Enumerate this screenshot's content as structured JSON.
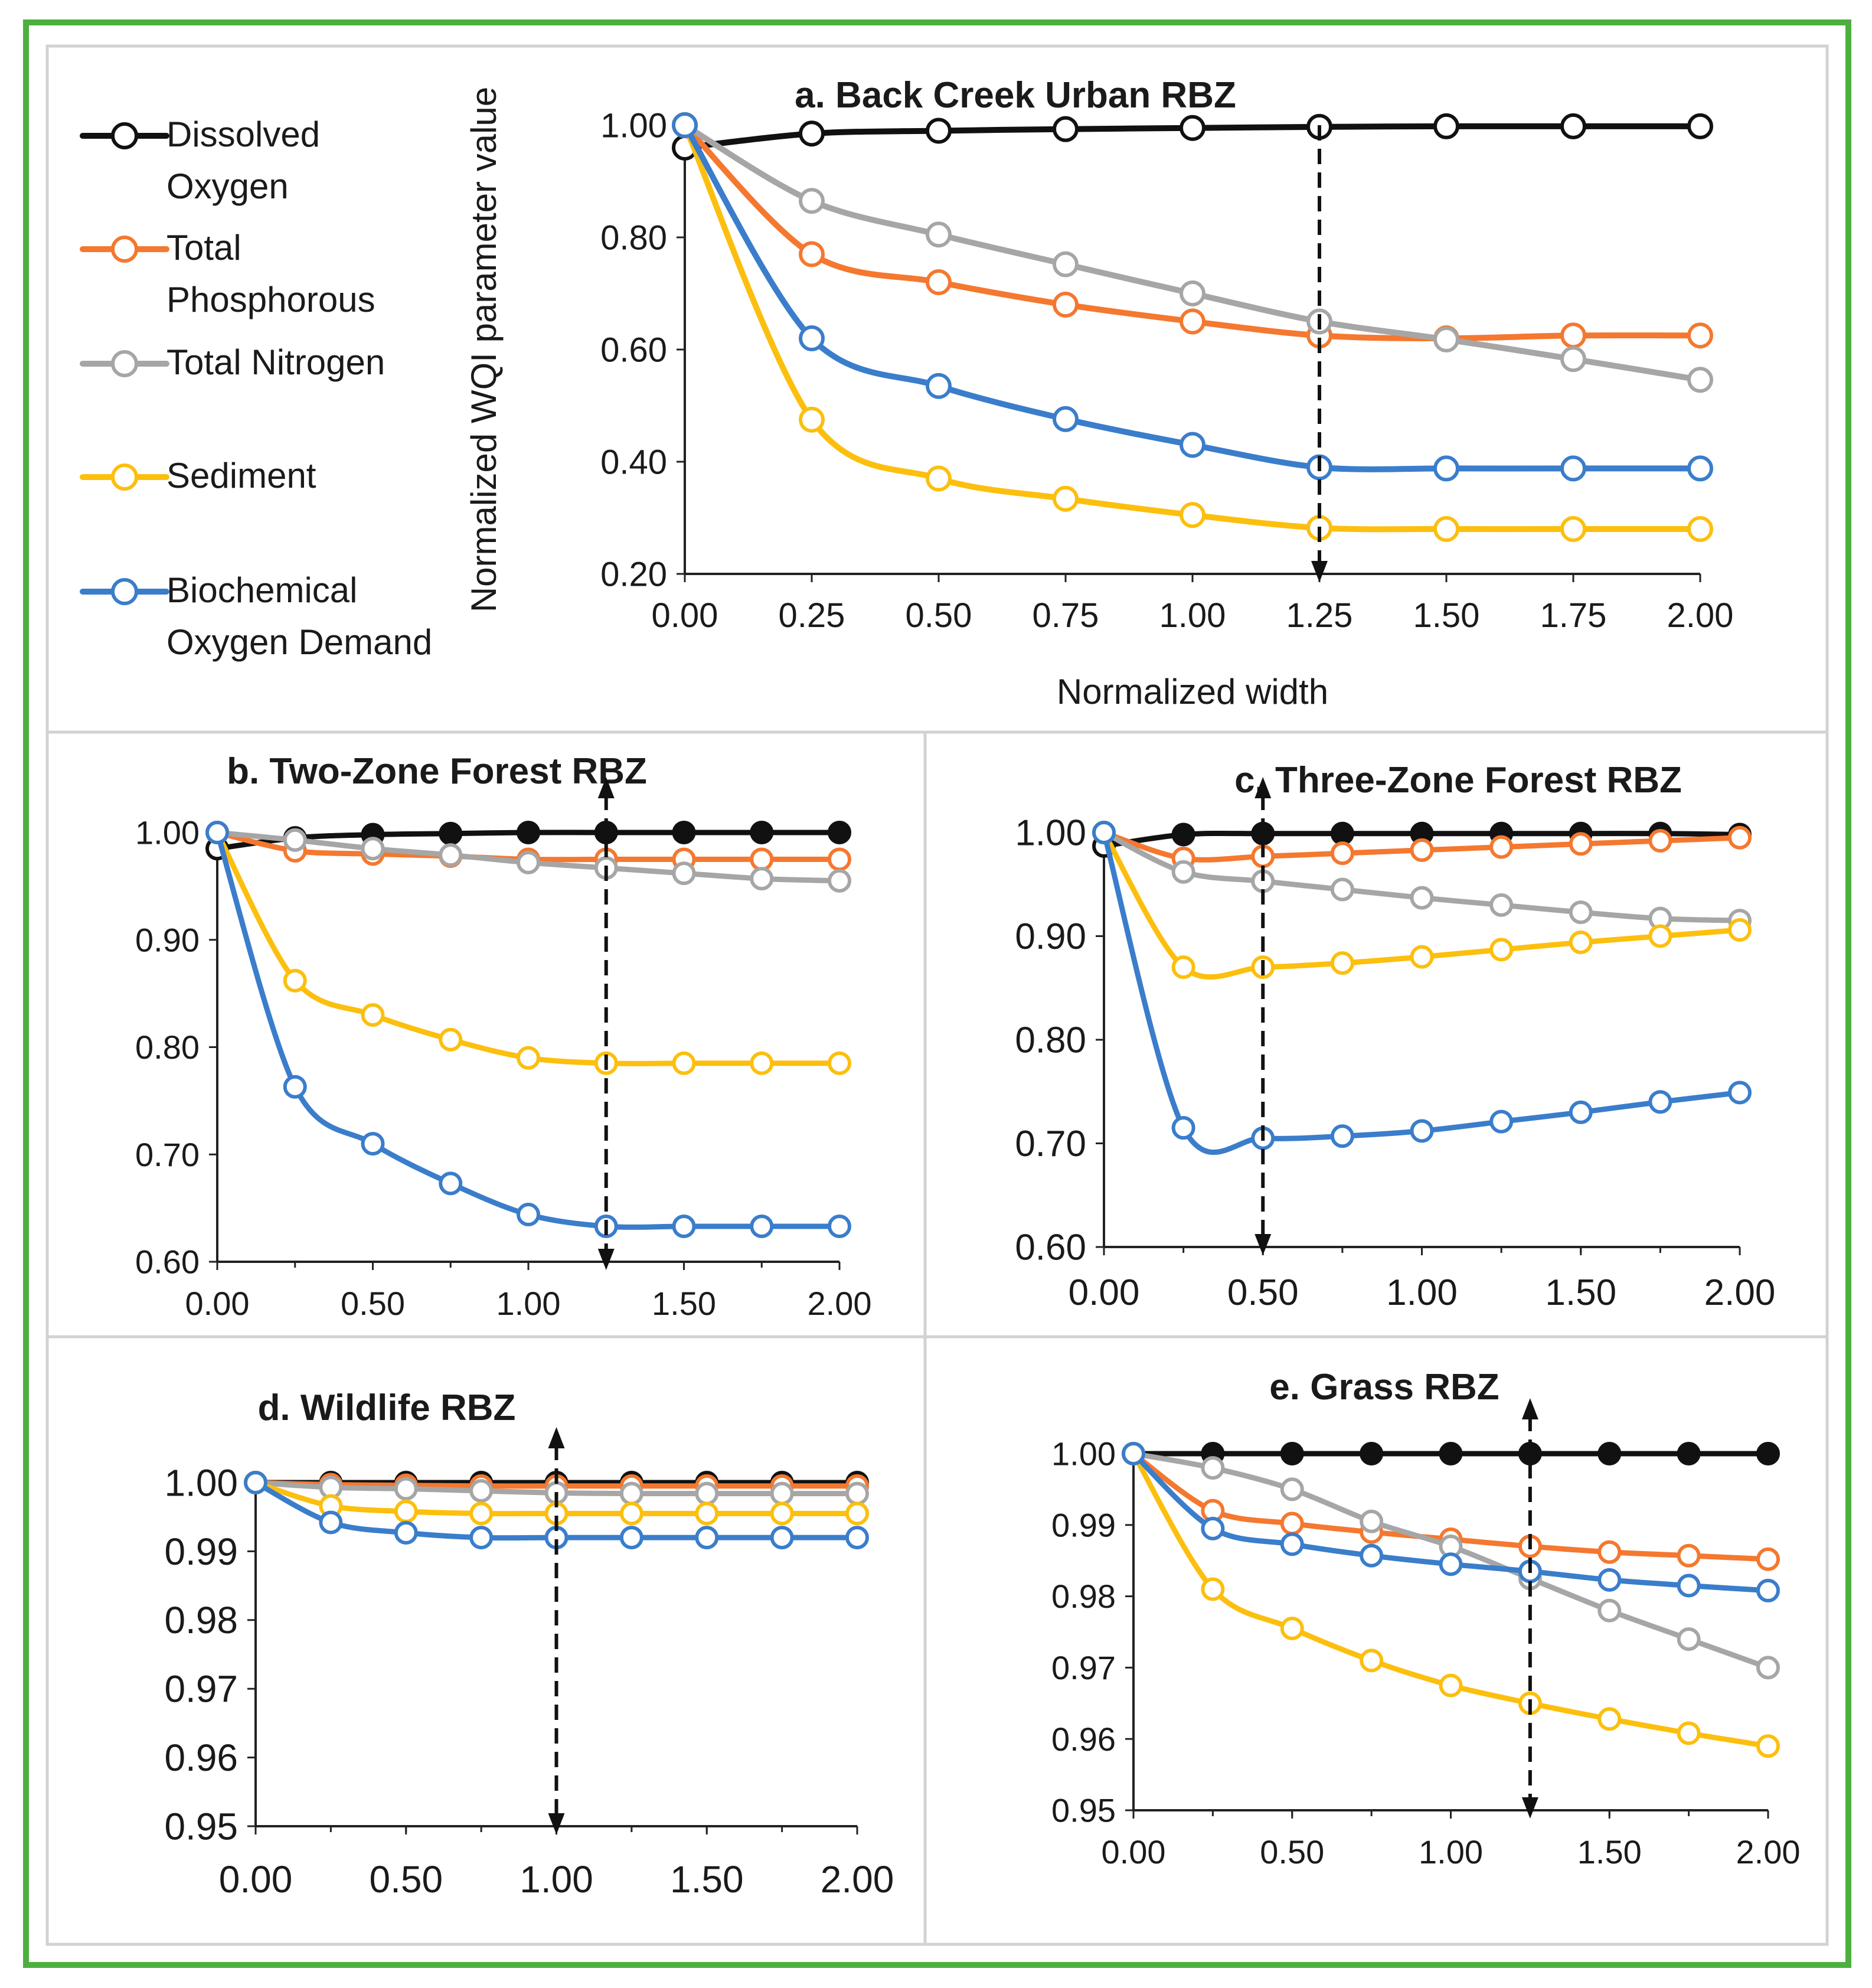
{
  "colors": {
    "Dissolved Oxygen": "#111111",
    "Total Phosphorous": "#f4782f",
    "Total Nitrogen": "#a6a6a6",
    "Sediment": "#fcbf0e",
    "Biochemical Oxygen Demand": "#3a7dcb",
    "frame": "#4caf3e",
    "divider": "#d2d2d2"
  },
  "legend": [
    {
      "key": "Dissolved Oxygen",
      "lines": [
        "Dissolved",
        "Oxygen"
      ]
    },
    {
      "key": "Total Phosphorous",
      "lines": [
        "Total",
        "Phosphorous"
      ]
    },
    {
      "key": "Total Nitrogen",
      "lines": [
        "Total Nitrogen"
      ]
    },
    {
      "key": "Sediment",
      "lines": [
        "Sediment"
      ]
    },
    {
      "key": "Biochemical Oxygen Demand",
      "lines": [
        "Biochemical",
        "Oxygen Demand"
      ]
    }
  ],
  "chart_data": [
    {
      "id": "a",
      "type": "line",
      "title": "a. Back Creek Urban RBZ",
      "xlabel": "Normalized width",
      "ylabel": "Normalized WQI parameter value",
      "xlim": [
        0,
        2
      ],
      "ylim": [
        0.2,
        1.0
      ],
      "xticks": [
        "0.00",
        "0.25",
        "0.50",
        "0.75",
        "1.00",
        "1.25",
        "1.50",
        "1.75",
        "2.00"
      ],
      "yticks": [
        "0.20",
        "0.40",
        "0.60",
        "0.80",
        "1.00"
      ],
      "marker_line_x": 1.25,
      "marker_arrow": "down",
      "x": [
        0,
        0.25,
        0.5,
        0.75,
        1.0,
        1.25,
        1.5,
        1.75,
        2.0
      ],
      "series": [
        {
          "name": "Dissolved Oxygen",
          "filled": false,
          "values": [
            0.96,
            0.985,
            0.99,
            0.993,
            0.995,
            0.997,
            0.998,
            0.998,
            0.998
          ]
        },
        {
          "name": "Total Phosphorous",
          "filled": false,
          "values": [
            1.0,
            0.77,
            0.72,
            0.68,
            0.65,
            0.625,
            0.62,
            0.625,
            0.625
          ]
        },
        {
          "name": "Total Nitrogen",
          "filled": false,
          "values": [
            1.0,
            0.865,
            0.805,
            0.752,
            0.7,
            0.65,
            0.618,
            0.583,
            0.546
          ]
        },
        {
          "name": "Sediment",
          "filled": false,
          "values": [
            1.0,
            0.475,
            0.37,
            0.334,
            0.305,
            0.282,
            0.28,
            0.28,
            0.28
          ]
        },
        {
          "name": "Biochemical Oxygen Demand",
          "filled": false,
          "values": [
            1.0,
            0.62,
            0.535,
            0.476,
            0.43,
            0.39,
            0.388,
            0.388,
            0.388
          ]
        }
      ]
    },
    {
      "id": "b",
      "type": "line",
      "title": "b. Two-Zone Forest RBZ",
      "xlim": [
        0,
        2
      ],
      "ylim": [
        0.6,
        1.0
      ],
      "xticks": [
        "0.00",
        "0.50",
        "1.00",
        "1.50",
        "2.00"
      ],
      "yticks": [
        "0.60",
        "0.70",
        "0.80",
        "0.90",
        "1.00"
      ],
      "marker_line_x": 1.25,
      "marker_arrow": "both",
      "x": [
        0,
        0.25,
        0.5,
        0.75,
        1.0,
        1.25,
        1.5,
        1.75,
        2.0
      ],
      "series": [
        {
          "name": "Dissolved Oxygen",
          "filled": true,
          "values": [
            0.985,
            0.995,
            0.998,
            0.999,
            1.0,
            1.0,
            1.0,
            1.0,
            1.0
          ]
        },
        {
          "name": "Total Phosphorous",
          "filled": false,
          "values": [
            1.0,
            0.983,
            0.98,
            0.978,
            0.975,
            0.975,
            0.975,
            0.975,
            0.975
          ]
        },
        {
          "name": "Total Nitrogen",
          "filled": false,
          "values": [
            1.0,
            0.993,
            0.985,
            0.979,
            0.972,
            0.967,
            0.962,
            0.957,
            0.955
          ]
        },
        {
          "name": "Sediment",
          "filled": false,
          "values": [
            1.0,
            0.862,
            0.83,
            0.807,
            0.79,
            0.785,
            0.785,
            0.785,
            0.785
          ]
        },
        {
          "name": "Biochemical Oxygen Demand",
          "filled": false,
          "values": [
            1.0,
            0.763,
            0.71,
            0.673,
            0.644,
            0.633,
            0.633,
            0.633,
            0.633
          ]
        }
      ]
    },
    {
      "id": "c",
      "type": "line",
      "title": "c. Three-Zone Forest RBZ",
      "xlim": [
        0,
        2
      ],
      "ylim": [
        0.6,
        1.0
      ],
      "xticks": [
        "0.00",
        "0.50",
        "1.00",
        "1.50",
        "2.00"
      ],
      "yticks": [
        "0.60",
        "0.70",
        "0.80",
        "0.90",
        "1.00"
      ],
      "marker_line_x": 0.5,
      "marker_arrow": "both",
      "x": [
        0,
        0.25,
        0.5,
        0.75,
        1.0,
        1.25,
        1.5,
        1.75,
        2.0
      ],
      "series": [
        {
          "name": "Dissolved Oxygen",
          "filled": true,
          "values": [
            0.987,
            0.998,
            0.999,
            0.999,
            0.999,
            0.999,
            0.999,
            0.999,
            0.998
          ]
        },
        {
          "name": "Total Phosphorous",
          "filled": false,
          "values": [
            1.0,
            0.975,
            0.977,
            0.98,
            0.983,
            0.986,
            0.989,
            0.992,
            0.995
          ]
        },
        {
          "name": "Total Nitrogen",
          "filled": false,
          "values": [
            1.0,
            0.962,
            0.953,
            0.945,
            0.937,
            0.93,
            0.923,
            0.917,
            0.915
          ]
        },
        {
          "name": "Sediment",
          "filled": false,
          "values": [
            1.0,
            0.87,
            0.87,
            0.874,
            0.88,
            0.887,
            0.894,
            0.9,
            0.906
          ]
        },
        {
          "name": "Biochemical Oxygen Demand",
          "filled": false,
          "values": [
            1.0,
            0.715,
            0.705,
            0.707,
            0.712,
            0.721,
            0.73,
            0.74,
            0.749
          ]
        }
      ]
    },
    {
      "id": "d",
      "type": "line",
      "title": "d. Wildlife RBZ",
      "xlim": [
        0,
        2
      ],
      "ylim": [
        0.95,
        1.0
      ],
      "xticks": [
        "0.00",
        "0.50",
        "1.00",
        "1.50",
        "2.00"
      ],
      "yticks": [
        "0.95",
        "0.96",
        "0.97",
        "0.98",
        "0.99",
        "1.00"
      ],
      "marker_line_x": 1.0,
      "marker_arrow": "both",
      "x": [
        0,
        0.25,
        0.5,
        0.75,
        1.0,
        1.25,
        1.5,
        1.75,
        2.0
      ],
      "series": [
        {
          "name": "Dissolved Oxygen",
          "filled": true,
          "values": [
            1.0,
            1.0,
            1.0,
            1.0,
            1.0,
            1.0,
            1.0,
            1.0,
            1.0
          ]
        },
        {
          "name": "Total Phosphorous",
          "filled": false,
          "values": [
            1.0,
            0.9997,
            0.9996,
            0.9995,
            0.9995,
            0.9995,
            0.9995,
            0.9995,
            0.9995
          ]
        },
        {
          "name": "Total Nitrogen",
          "filled": false,
          "values": [
            1.0,
            0.9993,
            0.9991,
            0.9988,
            0.9985,
            0.9984,
            0.9984,
            0.9984,
            0.9984
          ]
        },
        {
          "name": "Sediment",
          "filled": false,
          "values": [
            1.0,
            0.9966,
            0.9958,
            0.9955,
            0.9955,
            0.9955,
            0.9955,
            0.9955,
            0.9955
          ]
        },
        {
          "name": "Biochemical Oxygen Demand",
          "filled": false,
          "values": [
            1.0,
            0.9942,
            0.9927,
            0.992,
            0.992,
            0.992,
            0.992,
            0.992,
            0.992
          ]
        }
      ]
    },
    {
      "id": "e",
      "type": "line",
      "title": "e. Grass RBZ",
      "xlim": [
        0,
        2
      ],
      "ylim": [
        0.95,
        1.0
      ],
      "xticks": [
        "0.00",
        "0.50",
        "1.00",
        "1.50",
        "2.00"
      ],
      "yticks": [
        "0.95",
        "0.96",
        "0.97",
        "0.98",
        "0.99",
        "1.00"
      ],
      "marker_line_x": 1.25,
      "marker_arrow": "both",
      "x": [
        0,
        0.25,
        0.5,
        0.75,
        1.0,
        1.25,
        1.5,
        1.75,
        2.0
      ],
      "series": [
        {
          "name": "Dissolved Oxygen",
          "filled": true,
          "values": [
            1.0,
            1.0,
            1.0,
            1.0,
            1.0,
            1.0,
            1.0,
            1.0,
            1.0
          ]
        },
        {
          "name": "Total Phosphorous",
          "filled": false,
          "values": [
            1.0,
            0.992,
            0.9902,
            0.989,
            0.988,
            0.987,
            0.9862,
            0.9857,
            0.9852
          ]
        },
        {
          "name": "Total Nitrogen",
          "filled": false,
          "values": [
            1.0,
            0.998,
            0.995,
            0.9905,
            0.987,
            0.9825,
            0.978,
            0.974,
            0.97
          ]
        },
        {
          "name": "Sediment",
          "filled": false,
          "values": [
            1.0,
            0.981,
            0.9755,
            0.971,
            0.9675,
            0.965,
            0.9628,
            0.9608,
            0.959
          ]
        },
        {
          "name": "Biochemical Oxygen Demand",
          "filled": false,
          "values": [
            1.0,
            0.9895,
            0.9873,
            0.9857,
            0.9845,
            0.9835,
            0.9823,
            0.9815,
            0.9808
          ]
        }
      ]
    }
  ]
}
